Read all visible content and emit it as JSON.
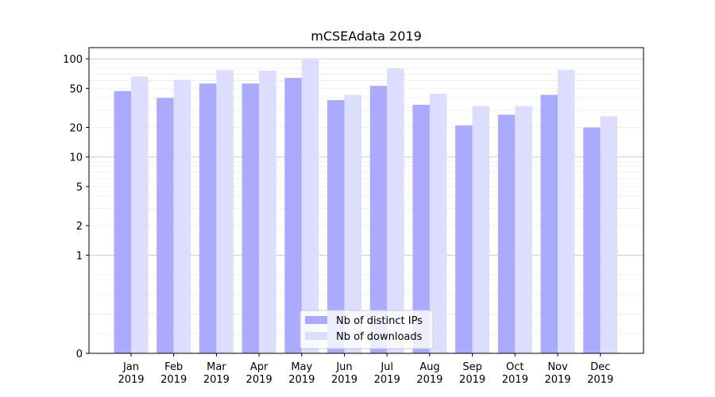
{
  "chart_data": {
    "type": "bar",
    "title": "mCSEAdata 2019",
    "xlabel": "",
    "ylabel": "",
    "y_scale": "symlog",
    "ylim": [
      0,
      130
    ],
    "y_ticks": [
      0,
      1,
      2,
      5,
      10,
      20,
      50,
      100
    ],
    "y_tick_labels": [
      "0",
      "1",
      "2",
      "5",
      "10",
      "20",
      "50",
      "100"
    ],
    "categories": [
      [
        "Jan",
        "2019"
      ],
      [
        "Feb",
        "2019"
      ],
      [
        "Mar",
        "2019"
      ],
      [
        "Apr",
        "2019"
      ],
      [
        "May",
        "2019"
      ],
      [
        "Jun",
        "2019"
      ],
      [
        "Jul",
        "2019"
      ],
      [
        "Aug",
        "2019"
      ],
      [
        "Sep",
        "2019"
      ],
      [
        "Oct",
        "2019"
      ],
      [
        "Nov",
        "2019"
      ],
      [
        "Dec",
        "2019"
      ]
    ],
    "series": [
      {
        "name": "Nb of distinct IPs",
        "color": "#aaaaff",
        "values": [
          47,
          40,
          56,
          56,
          64,
          38,
          53,
          34,
          21,
          27,
          43,
          20
        ]
      },
      {
        "name": "Nb of downloads",
        "color": "#ddddff",
        "values": [
          66,
          61,
          77,
          76,
          98,
          43,
          80,
          44,
          33,
          33,
          77,
          26
        ]
      }
    ],
    "legend_position": "lower center"
  }
}
